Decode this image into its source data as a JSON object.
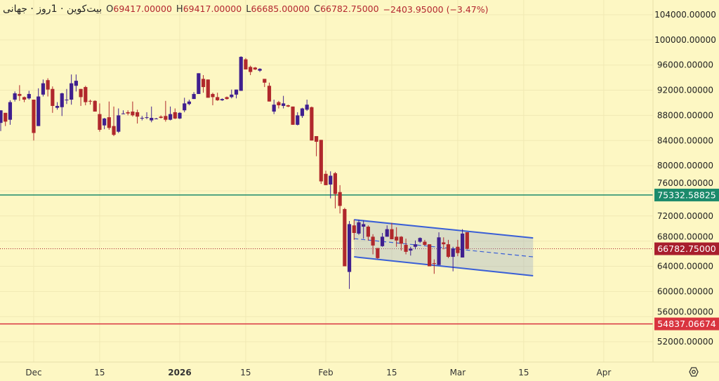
{
  "legend": {
    "title": "بیت‌کوین · 1روز · جهانی",
    "open_label": "O",
    "open": "69417.00000",
    "high_label": "H",
    "high": "69417.00000",
    "low_label": "L",
    "low": "66685.00000",
    "close_label": "C",
    "close": "66782.75000",
    "change": "−2403.95000 (−3.47%)"
  },
  "colors": {
    "background": "#fdf7c3",
    "up": "#3f1f8f",
    "down": "#b0282c",
    "resistance": "#1b8a6b",
    "support": "#d9343f",
    "last_price": "#a81e2d",
    "channel": "#3a5fd6"
  },
  "settings_icon": "gear-hexagon-icon",
  "chart_data": {
    "type": "candlestick",
    "ylim": [
      50000,
      106000
    ],
    "y_ticks": [
      "104000.00000",
      "100000.00000",
      "96000.00000",
      "92000.00000",
      "88000.00000",
      "84000.00000",
      "80000.00000",
      "76000.00000",
      "72000.00000",
      "68000.00000",
      "64000.00000",
      "60000.00000",
      "56000.00000",
      "52000.00000"
    ],
    "x_ticks": [
      {
        "date": "2025-12-01",
        "label": "Dec"
      },
      {
        "date": "2025-12-15",
        "label": "15"
      },
      {
        "date": "2026-01-01",
        "label": "2026",
        "bold": true
      },
      {
        "date": "2026-01-15",
        "label": "15"
      },
      {
        "date": "2026-02-01",
        "label": "Feb"
      },
      {
        "date": "2026-02-15",
        "label": "15"
      },
      {
        "date": "2026-03-01",
        "label": "Mar"
      },
      {
        "date": "2026-03-15",
        "label": "15"
      },
      {
        "date": "2026-04-01",
        "label": "Apr"
      }
    ],
    "grid": true,
    "horizontal_lines": [
      {
        "price": 75332.58825,
        "label": "75332.58825",
        "color": "#1b8a6b"
      },
      {
        "price": 54837.06674,
        "label": "54837.06674",
        "color": "#d9343f"
      }
    ],
    "last_price": {
      "price": 66782.75,
      "label": "66782.75000"
    },
    "channel": {
      "start": "2026-02-07",
      "end": "2026-03-17",
      "upper": [
        71400,
        68500
      ],
      "middle": [
        68400,
        65500
      ],
      "lower": [
        65500,
        62500
      ]
    },
    "columns": [
      "date",
      "open",
      "high",
      "low",
      "close"
    ],
    "candles": [
      [
        "2025-11-24",
        86800,
        88800,
        85500,
        88800
      ],
      [
        "2025-11-25",
        88400,
        88400,
        86300,
        87000
      ],
      [
        "2025-11-26",
        87300,
        90400,
        86500,
        90100
      ],
      [
        "2025-11-27",
        90500,
        91800,
        90200,
        91500
      ],
      [
        "2025-11-28",
        91400,
        92800,
        90300,
        91100
      ],
      [
        "2025-11-29",
        90900,
        91000,
        90100,
        90500
      ],
      [
        "2025-11-30",
        90700,
        91900,
        90500,
        91400
      ],
      [
        "2025-12-01",
        90500,
        90500,
        84000,
        85200
      ],
      [
        "2025-12-02",
        86300,
        92300,
        86300,
        91000
      ],
      [
        "2025-12-03",
        91300,
        93700,
        91000,
        93100
      ],
      [
        "2025-12-04",
        93600,
        93900,
        91000,
        92100
      ],
      [
        "2025-12-05",
        92200,
        92600,
        88400,
        89500
      ],
      [
        "2025-12-06",
        89200,
        90100,
        88900,
        89500
      ],
      [
        "2025-12-07",
        89300,
        91600,
        87900,
        91500
      ],
      [
        "2025-12-08",
        90400,
        92200,
        89800,
        90500
      ],
      [
        "2025-12-09",
        90500,
        94500,
        89700,
        93100
      ],
      [
        "2025-12-10",
        92700,
        94500,
        91800,
        93500
      ],
      [
        "2025-12-11",
        92200,
        92200,
        89500,
        90900
      ],
      [
        "2025-12-12",
        92500,
        92700,
        89600,
        90100
      ],
      [
        "2025-12-13",
        90300,
        90500,
        89700,
        90200
      ],
      [
        "2025-12-14",
        90300,
        90400,
        88600,
        88600
      ],
      [
        "2025-12-15",
        88200,
        89900,
        85400,
        85700
      ],
      [
        "2025-12-16",
        86400,
        87600,
        85800,
        87500
      ],
      [
        "2025-12-17",
        87700,
        90200,
        85700,
        86000
      ],
      [
        "2025-12-18",
        86300,
        89400,
        84700,
        84900
      ],
      [
        "2025-12-19",
        85400,
        89100,
        85200,
        88000
      ],
      [
        "2025-12-20",
        88200,
        88800,
        88200,
        88300
      ],
      [
        "2025-12-21",
        88500,
        88800,
        88000,
        88300
      ],
      [
        "2025-12-22",
        88600,
        90200,
        87800,
        88000
      ],
      [
        "2025-12-23",
        88500,
        88900,
        86700,
        87800
      ],
      [
        "2025-12-24",
        87500,
        87900,
        87200,
        87600
      ],
      [
        "2025-12-25",
        87600,
        88500,
        87400,
        87700
      ],
      [
        "2025-12-26",
        87200,
        89400,
        86900,
        87600
      ],
      [
        "2025-12-27",
        87400,
        87600,
        87400,
        87500
      ],
      [
        "2025-12-28",
        87800,
        88000,
        87500,
        87600
      ],
      [
        "2025-12-29",
        87900,
        90300,
        87000,
        87300
      ],
      [
        "2025-12-30",
        87300,
        89400,
        87200,
        88200
      ],
      [
        "2025-12-31",
        88500,
        89100,
        87400,
        87500
      ],
      [
        "2026-01-01",
        87500,
        88500,
        87400,
        88400
      ],
      [
        "2026-01-02",
        88800,
        90800,
        88500,
        89900
      ],
      [
        "2026-01-03",
        89800,
        90500,
        89600,
        90200
      ],
      [
        "2026-01-04",
        90600,
        91700,
        90600,
        91400
      ],
      [
        "2026-01-05",
        91400,
        94700,
        91400,
        94700
      ],
      [
        "2026-01-06",
        93800,
        94400,
        91600,
        92500
      ],
      [
        "2026-01-07",
        93700,
        93700,
        90800,
        90800
      ],
      [
        "2026-01-08",
        91400,
        91600,
        89600,
        90900
      ],
      [
        "2026-01-09",
        90900,
        91600,
        90300,
        90400
      ],
      [
        "2026-01-10",
        90400,
        90700,
        90300,
        90600
      ],
      [
        "2026-01-11",
        90900,
        91000,
        90500,
        90600
      ],
      [
        "2026-01-12",
        90900,
        92100,
        90700,
        91300
      ],
      [
        "2026-01-13",
        91300,
        92100,
        90700,
        92100
      ],
      [
        "2026-01-14",
        91900,
        97400,
        91900,
        97300
      ],
      [
        "2026-01-15",
        96900,
        97100,
        95300,
        95300
      ],
      [
        "2026-01-16",
        95700,
        95900,
        94400,
        94900
      ],
      [
        "2026-01-17",
        95600,
        95700,
        95200,
        95300
      ],
      [
        "2026-01-18",
        95100,
        95500,
        94900,
        95400
      ],
      [
        "2026-01-19",
        93800,
        93800,
        92500,
        93200
      ],
      [
        "2026-01-20",
        92700,
        93200,
        90200,
        90200
      ],
      [
        "2026-01-21",
        88600,
        90500,
        88200,
        89700
      ],
      [
        "2026-01-22",
        90100,
        90300,
        89100,
        89600
      ],
      [
        "2026-01-23",
        89500,
        91100,
        89100,
        89900
      ],
      [
        "2026-01-24",
        89600,
        89700,
        89300,
        89400
      ],
      [
        "2026-01-25",
        89400,
        89400,
        86500,
        86500
      ],
      [
        "2026-01-26",
        86500,
        88500,
        86400,
        88000
      ],
      [
        "2026-01-27",
        87900,
        89200,
        87600,
        89100
      ],
      [
        "2026-01-28",
        88900,
        90500,
        88700,
        89700
      ],
      [
        "2026-01-29",
        89300,
        89400,
        84000,
        84000
      ],
      [
        "2026-01-30",
        84700,
        84700,
        81500,
        83800
      ],
      [
        "2026-01-31",
        84100,
        84100,
        77100,
        77500
      ],
      [
        "2026-02-01",
        78700,
        79200,
        76900,
        76900
      ],
      [
        "2026-02-02",
        77000,
        79100,
        74800,
        78400
      ],
      [
        "2026-02-03",
        78800,
        79000,
        73200,
        75500
      ],
      [
        "2026-02-04",
        75800,
        76900,
        72400,
        73600
      ],
      [
        "2026-02-05",
        73100,
        73300,
        64000,
        64000
      ],
      [
        "2026-02-06",
        63100,
        71200,
        60400,
        70700
      ],
      [
        "2026-02-07",
        70500,
        71400,
        68200,
        69300
      ],
      [
        "2026-02-08",
        69200,
        71400,
        69000,
        71000
      ],
      [
        "2026-02-09",
        70300,
        71300,
        68400,
        70700
      ],
      [
        "2026-02-10",
        70300,
        70500,
        68100,
        68700
      ],
      [
        "2026-02-11",
        68700,
        69100,
        65900,
        67300
      ],
      [
        "2026-02-12",
        66900,
        66900,
        65200,
        65300
      ],
      [
        "2026-02-13",
        67200,
        69300,
        67100,
        68700
      ],
      [
        "2026-02-14",
        68700,
        70500,
        68700,
        69900
      ],
      [
        "2026-02-15",
        69900,
        70900,
        68300,
        68300
      ],
      [
        "2026-02-16",
        68700,
        70200,
        67100,
        68100
      ],
      [
        "2026-02-17",
        68700,
        68800,
        66500,
        67600
      ],
      [
        "2026-02-18",
        67400,
        68400,
        65900,
        66300
      ],
      [
        "2026-02-19",
        66500,
        67100,
        65700,
        66800
      ],
      [
        "2026-02-20",
        67100,
        68100,
        66700,
        67500
      ],
      [
        "2026-02-21",
        67900,
        68600,
        67700,
        68500
      ],
      [
        "2026-02-22",
        67900,
        68200,
        67300,
        67400
      ],
      [
        "2026-02-23",
        67500,
        67500,
        64000,
        64000
      ],
      [
        "2026-02-24",
        64500,
        65100,
        62800,
        64400
      ],
      [
        "2026-02-25",
        64200,
        69400,
        64200,
        68600
      ],
      [
        "2026-02-26",
        67800,
        68600,
        66700,
        67500
      ],
      [
        "2026-02-27",
        67500,
        68200,
        65300,
        65500
      ],
      [
        "2026-02-28",
        65500,
        67100,
        63200,
        66800
      ],
      [
        "2026-03-01",
        67100,
        68200,
        65600,
        66100
      ],
      [
        "2026-03-02",
        65400,
        69900,
        65400,
        69200
      ],
      [
        "2026-03-03",
        69417,
        69417,
        66685,
        66782.75
      ]
    ]
  }
}
